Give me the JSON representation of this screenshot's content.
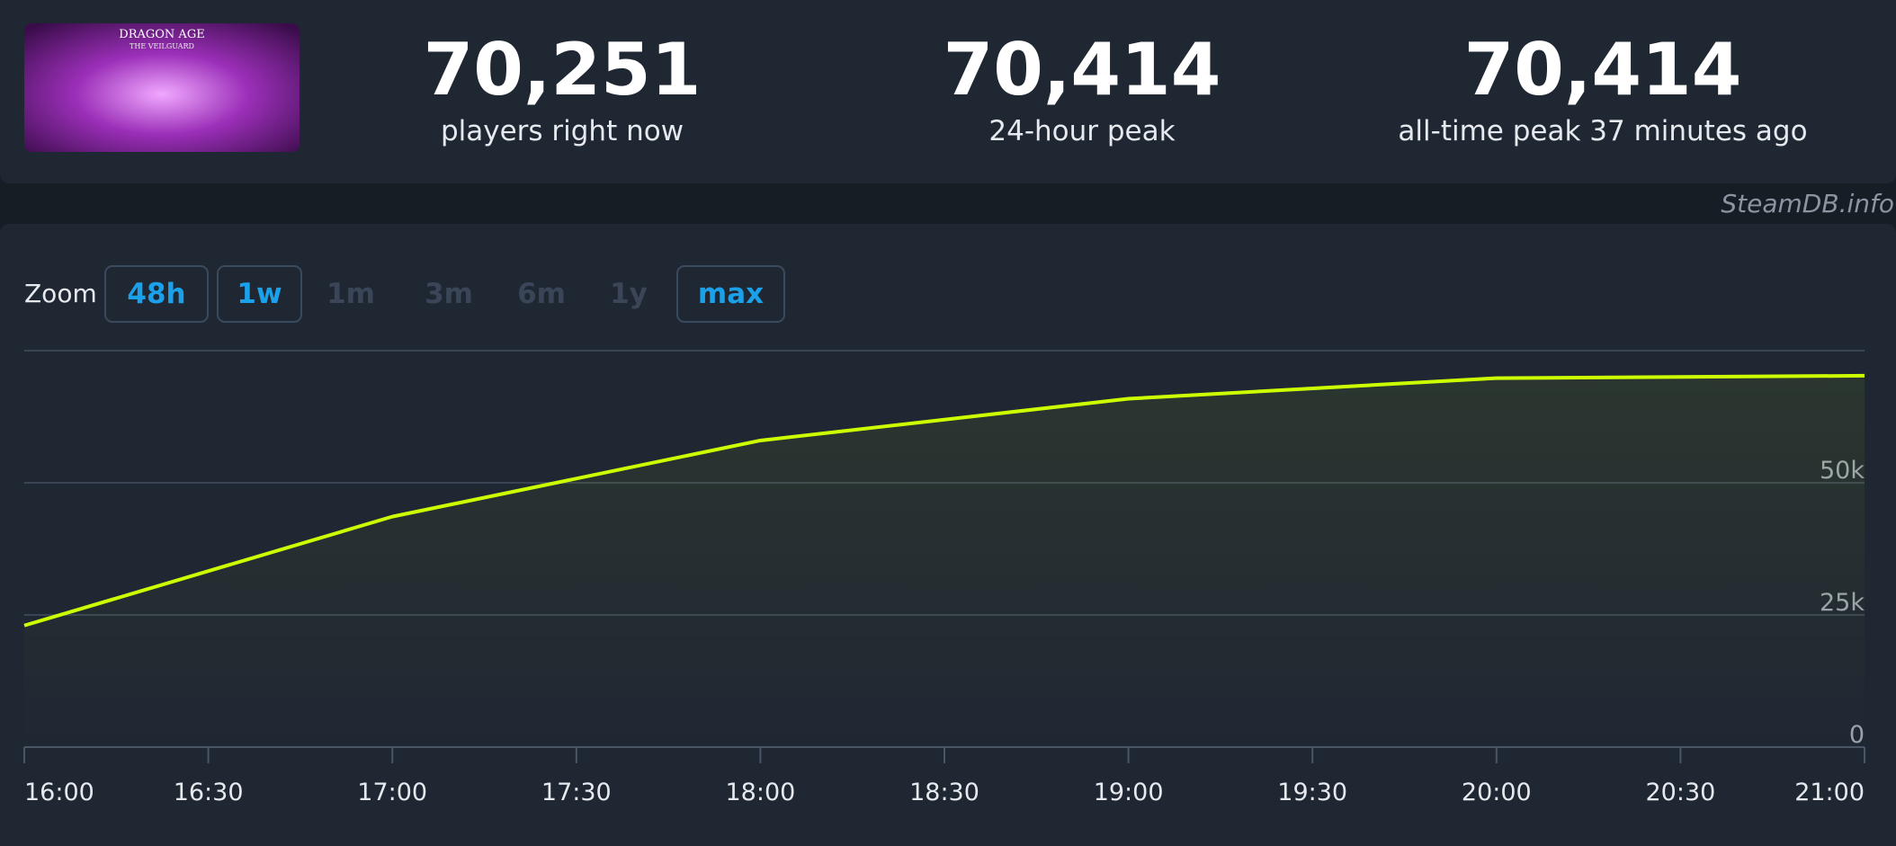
{
  "header": {
    "image": {
      "title": "DRAGON AGE",
      "subtitle": "THE VEILGUARD"
    },
    "stats": [
      {
        "value": "70,251",
        "label": "players right now"
      },
      {
        "value": "70,414",
        "label": "24-hour peak"
      },
      {
        "value": "70,414",
        "label": "all-time peak 37 minutes ago"
      }
    ]
  },
  "watermark": "SteamDB.info",
  "zoom": {
    "label": "Zoom",
    "options": [
      {
        "text": "48h",
        "active": true
      },
      {
        "text": "1w",
        "active": true
      },
      {
        "text": "1m",
        "active": false
      },
      {
        "text": "3m",
        "active": false
      },
      {
        "text": "6m",
        "active": false
      },
      {
        "text": "1y",
        "active": false
      },
      {
        "text": "max",
        "active": true
      }
    ]
  },
  "chart_data": {
    "type": "line",
    "x": [
      "16:00",
      "17:00",
      "18:00",
      "19:00",
      "20:00",
      "21:00"
    ],
    "values": [
      23000,
      43600,
      58000,
      65900,
      69800,
      70251
    ],
    "color": "#ccff00",
    "xlim": [
      "16:00",
      "21:00"
    ],
    "xticks": [
      "16:00",
      "16:30",
      "17:00",
      "17:30",
      "18:00",
      "18:30",
      "19:00",
      "19:30",
      "20:00",
      "20:30",
      "21:00"
    ],
    "ylim": [
      0,
      75000
    ],
    "yticks": [
      0,
      {
        "value": 25000,
        "label": "25k"
      },
      {
        "value": 50000,
        "label": "50k"
      }
    ],
    "grid": true
  }
}
